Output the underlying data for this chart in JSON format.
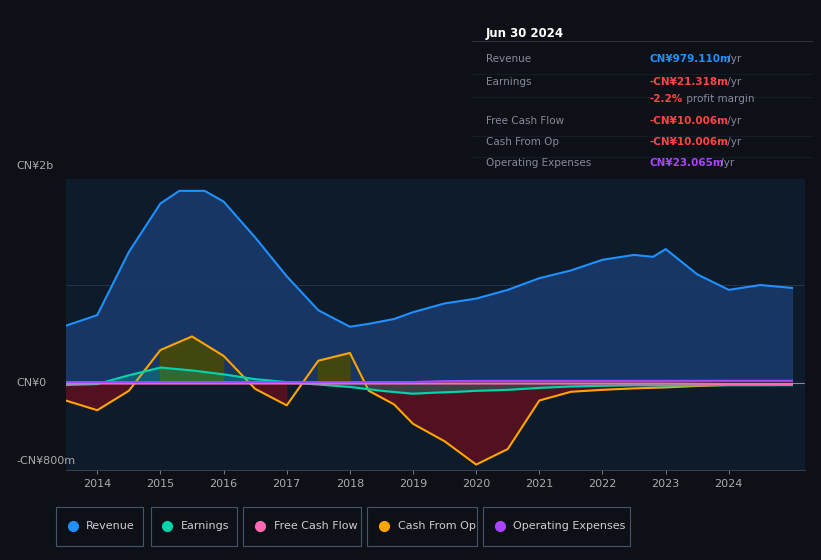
{
  "bg_color": "#0d1117",
  "plot_bg_color": "#0d1b2a",
  "title_box": {
    "title": "Jun 30 2024",
    "rows": [
      {
        "label": "Revenue",
        "value": "CN¥979.110m",
        "unit": " /yr",
        "value_color": "#1e90ff"
      },
      {
        "label": "Earnings",
        "value": "-CN¥21.318m",
        "unit": " /yr",
        "value_color": "#ff4444"
      },
      {
        "label": "",
        "value": "-2.2%",
        "unit": " profit margin",
        "value_color": "#ff4444"
      },
      {
        "label": "Free Cash Flow",
        "value": "-CN¥10.006m",
        "unit": " /yr",
        "value_color": "#ff4444"
      },
      {
        "label": "Cash From Op",
        "value": "-CN¥10.006m",
        "unit": " /yr",
        "value_color": "#ff4444"
      },
      {
        "label": "Operating Expenses",
        "value": "CN¥23.065m",
        "unit": " /yr",
        "value_color": "#aa44ff"
      }
    ]
  },
  "ylabel_top": "CN¥2b",
  "ylabel_zero": "CN¥0",
  "ylabel_bottom": "-CN¥800m",
  "xlim": [
    2013.5,
    2025.2
  ],
  "ylim": [
    -900,
    2100
  ],
  "xticks": [
    2014,
    2015,
    2016,
    2017,
    2018,
    2019,
    2020,
    2021,
    2022,
    2023,
    2024
  ],
  "series": {
    "revenue": {
      "color": "#1e90ff",
      "fill_color": "#1a3a6a",
      "label": "Revenue",
      "x": [
        2013.5,
        2014.0,
        2014.5,
        2015.0,
        2015.3,
        2015.7,
        2016.0,
        2016.5,
        2017.0,
        2017.5,
        2018.0,
        2018.3,
        2018.7,
        2019.0,
        2019.5,
        2020.0,
        2020.5,
        2021.0,
        2021.5,
        2022.0,
        2022.5,
        2022.8,
        2023.0,
        2023.5,
        2024.0,
        2024.5,
        2025.0
      ],
      "y": [
        590,
        700,
        1350,
        1850,
        1980,
        1980,
        1870,
        1500,
        1100,
        750,
        580,
        610,
        660,
        730,
        820,
        870,
        960,
        1080,
        1160,
        1270,
        1320,
        1300,
        1380,
        1120,
        960,
        1010,
        980
      ]
    },
    "earnings": {
      "color": "#00d4aa",
      "label": "Earnings",
      "x": [
        2013.5,
        2014.0,
        2014.5,
        2015.0,
        2015.5,
        2016.0,
        2016.5,
        2017.0,
        2017.5,
        2018.0,
        2018.5,
        2019.0,
        2019.3,
        2019.7,
        2020.0,
        2020.5,
        2021.0,
        2021.5,
        2022.0,
        2022.5,
        2023.0,
        2023.5,
        2024.0,
        2024.5,
        2025.0
      ],
      "y": [
        -20,
        -10,
        80,
        160,
        130,
        90,
        40,
        10,
        -15,
        -40,
        -80,
        -110,
        -100,
        -90,
        -80,
        -70,
        -50,
        -35,
        -28,
        -22,
        -25,
        -22,
        -22,
        -22,
        -21
      ]
    },
    "free_cash_flow": {
      "color": "#ff69b4",
      "label": "Free Cash Flow",
      "x": [
        2013.5,
        2014.0,
        2015.0,
        2016.0,
        2017.0,
        2018.0,
        2019.0,
        2020.0,
        2021.0,
        2022.0,
        2023.0,
        2024.0,
        2025.0
      ],
      "y": [
        -5,
        -5,
        -5,
        -5,
        -5,
        -5,
        -5,
        -5,
        -5,
        -5,
        -5,
        -10,
        -10
      ]
    },
    "cash_from_op": {
      "color": "#ffa500",
      "label": "Cash From Op",
      "x": [
        2013.5,
        2014.0,
        2014.5,
        2015.0,
        2015.5,
        2016.0,
        2016.5,
        2017.0,
        2017.5,
        2018.0,
        2018.3,
        2018.7,
        2019.0,
        2019.5,
        2020.0,
        2020.5,
        2021.0,
        2021.5,
        2022.0,
        2022.5,
        2023.0,
        2023.5,
        2024.0,
        2024.5,
        2025.0
      ],
      "y": [
        -180,
        -280,
        -80,
        340,
        480,
        280,
        -60,
        -230,
        230,
        310,
        -80,
        -220,
        -420,
        -600,
        -840,
        -680,
        -180,
        -90,
        -70,
        -55,
        -45,
        -30,
        -20,
        -12,
        -10
      ]
    },
    "operating_expenses": {
      "color": "#aa44ff",
      "label": "Operating Expenses",
      "x": [
        2013.5,
        2019.0,
        2019.5,
        2020.0,
        2025.0
      ],
      "y": [
        10,
        10,
        20,
        22,
        23
      ]
    }
  },
  "legend": [
    {
      "label": "Revenue",
      "color": "#1e90ff"
    },
    {
      "label": "Earnings",
      "color": "#00d4aa"
    },
    {
      "label": "Free Cash Flow",
      "color": "#ff69b4"
    },
    {
      "label": "Cash From Op",
      "color": "#ffa500"
    },
    {
      "label": "Operating Expenses",
      "color": "#aa44ff"
    }
  ]
}
